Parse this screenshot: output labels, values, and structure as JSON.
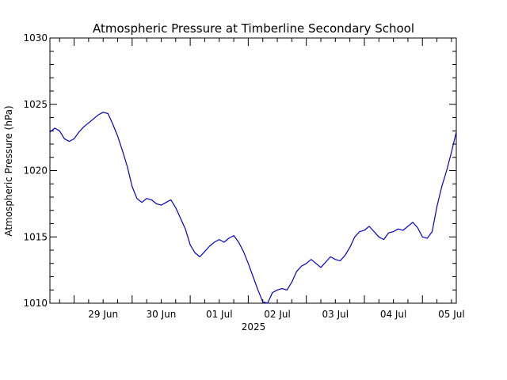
{
  "chart_data": {
    "type": "line",
    "title": "Atmospheric Pressure at Timberline Secondary School",
    "ylabel": "Atmospheric Pressure (hPa)",
    "xlabel": "2025",
    "ylim": [
      1010,
      1030
    ],
    "xlim": [
      "2025-06-28 14:00",
      "2025-07-05 14:00"
    ],
    "yticks": [
      1010,
      1015,
      1020,
      1025,
      1030
    ],
    "xticks": [
      {
        "label": "29 Jun",
        "date": "2025-06-29 12:00"
      },
      {
        "label": "30 Jun",
        "date": "2025-06-30 12:00"
      },
      {
        "label": "01 Jul",
        "date": "2025-07-01 12:00"
      },
      {
        "label": "02 Jul",
        "date": "2025-07-02 12:00"
      },
      {
        "label": "03 Jul",
        "date": "2025-07-03 12:00"
      },
      {
        "label": "04 Jul",
        "date": "2025-07-04 12:00"
      },
      {
        "label": "05 Jul",
        "date": "2025-07-05 12:00"
      }
    ],
    "grid": false,
    "legend": "none",
    "colors": {
      "line": "#0000cc",
      "axes": "#000000",
      "background": "#ffffff"
    },
    "series": [
      {
        "x": [
          "2025-06-28 14:00",
          "2025-06-28 16:00",
          "2025-06-28 18:00",
          "2025-06-28 20:00",
          "2025-06-28 22:00",
          "2025-06-29 00:00",
          "2025-06-29 02:00",
          "2025-06-29 04:00",
          "2025-06-29 06:00",
          "2025-06-29 08:00",
          "2025-06-29 10:00",
          "2025-06-29 12:00",
          "2025-06-29 14:00",
          "2025-06-29 16:00",
          "2025-06-29 18:00",
          "2025-06-29 20:00",
          "2025-06-29 22:00",
          "2025-06-30 00:00",
          "2025-06-30 02:00",
          "2025-06-30 04:00",
          "2025-06-30 06:00",
          "2025-06-30 08:00",
          "2025-06-30 10:00",
          "2025-06-30 12:00",
          "2025-06-30 14:00",
          "2025-06-30 16:00",
          "2025-06-30 18:00",
          "2025-06-30 20:00",
          "2025-06-30 22:00",
          "2025-07-01 00:00",
          "2025-07-01 02:00",
          "2025-07-01 04:00",
          "2025-07-01 06:00",
          "2025-07-01 08:00",
          "2025-07-01 10:00",
          "2025-07-01 12:00",
          "2025-07-01 14:00",
          "2025-07-01 16:00",
          "2025-07-01 18:00",
          "2025-07-01 20:00",
          "2025-07-01 22:00",
          "2025-07-02 00:00",
          "2025-07-02 02:00",
          "2025-07-02 04:00",
          "2025-07-02 06:00",
          "2025-07-02 08:00",
          "2025-07-02 10:00",
          "2025-07-02 12:00",
          "2025-07-02 14:00",
          "2025-07-02 16:00",
          "2025-07-02 18:00",
          "2025-07-02 20:00",
          "2025-07-02 22:00",
          "2025-07-03 00:00",
          "2025-07-03 02:00",
          "2025-07-03 04:00",
          "2025-07-03 06:00",
          "2025-07-03 08:00",
          "2025-07-03 10:00",
          "2025-07-03 12:00",
          "2025-07-03 14:00",
          "2025-07-03 16:00",
          "2025-07-03 18:00",
          "2025-07-03 20:00",
          "2025-07-03 22:00",
          "2025-07-04 00:00",
          "2025-07-04 02:00",
          "2025-07-04 04:00",
          "2025-07-04 06:00",
          "2025-07-04 08:00",
          "2025-07-04 10:00",
          "2025-07-04 12:00",
          "2025-07-04 14:00",
          "2025-07-04 16:00",
          "2025-07-04 18:00",
          "2025-07-04 20:00",
          "2025-07-04 22:00",
          "2025-07-05 00:00",
          "2025-07-05 02:00",
          "2025-07-05 04:00",
          "2025-07-05 06:00",
          "2025-07-05 08:00",
          "2025-07-05 10:00",
          "2025-07-05 12:00",
          "2025-07-05 14:00"
        ],
        "values": [
          1022.9,
          1023.2,
          1023.0,
          1022.4,
          1022.2,
          1022.4,
          1022.9,
          1023.3,
          1023.6,
          1023.9,
          1024.2,
          1024.4,
          1024.3,
          1023.5,
          1022.6,
          1021.5,
          1020.3,
          1018.8,
          1017.9,
          1017.6,
          1017.9,
          1017.8,
          1017.5,
          1017.4,
          1017.6,
          1017.8,
          1017.2,
          1016.4,
          1015.6,
          1014.4,
          1013.8,
          1013.5,
          1013.9,
          1014.3,
          1014.6,
          1014.8,
          1014.6,
          1014.9,
          1015.1,
          1014.6,
          1013.9,
          1013.0,
          1012.0,
          1011.0,
          1010.1,
          1010.0,
          1010.8,
          1011.0,
          1011.1,
          1011.0,
          1011.6,
          1012.4,
          1012.8,
          1013.0,
          1013.3,
          1013.0,
          1012.7,
          1013.1,
          1013.5,
          1013.3,
          1013.2,
          1013.6,
          1014.2,
          1015.0,
          1015.4,
          1015.5,
          1015.8,
          1015.4,
          1015.0,
          1014.8,
          1015.3,
          1015.4,
          1015.6,
          1015.5,
          1015.8,
          1016.1,
          1015.7,
          1015.0,
          1014.9,
          1015.4,
          1017.3,
          1018.8,
          1020.0,
          1021.4,
          1022.9
        ]
      }
    ]
  }
}
